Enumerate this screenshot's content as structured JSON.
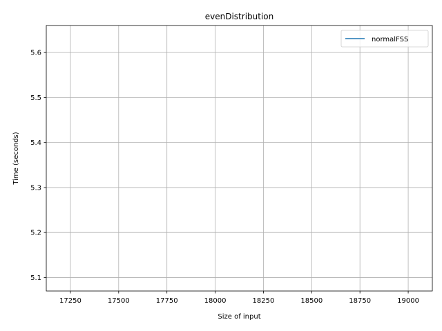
{
  "chart_data": {
    "type": "line",
    "title": "evenDistribution",
    "xlabel": "Size of input",
    "ylabel": "Time (seconds)",
    "xlim": [
      17125,
      19125
    ],
    "ylim": [
      5.07,
      5.66
    ],
    "xticks": [
      17250,
      17500,
      17750,
      18000,
      18250,
      18500,
      18750,
      19000
    ],
    "xtick_labels": [
      "17250",
      "17500",
      "17750",
      "18000",
      "18250",
      "18500",
      "18750",
      "19000"
    ],
    "yticks": [
      5.1,
      5.2,
      5.3,
      5.4,
      5.5,
      5.6
    ],
    "ytick_labels": [
      "5.1",
      "5.2",
      "5.3",
      "5.4",
      "5.5",
      "5.6"
    ],
    "grid": true,
    "legend_position": "top-right",
    "series": [
      {
        "name": "normalFSS",
        "color": "#1f77b4",
        "x": [],
        "y": []
      }
    ]
  }
}
